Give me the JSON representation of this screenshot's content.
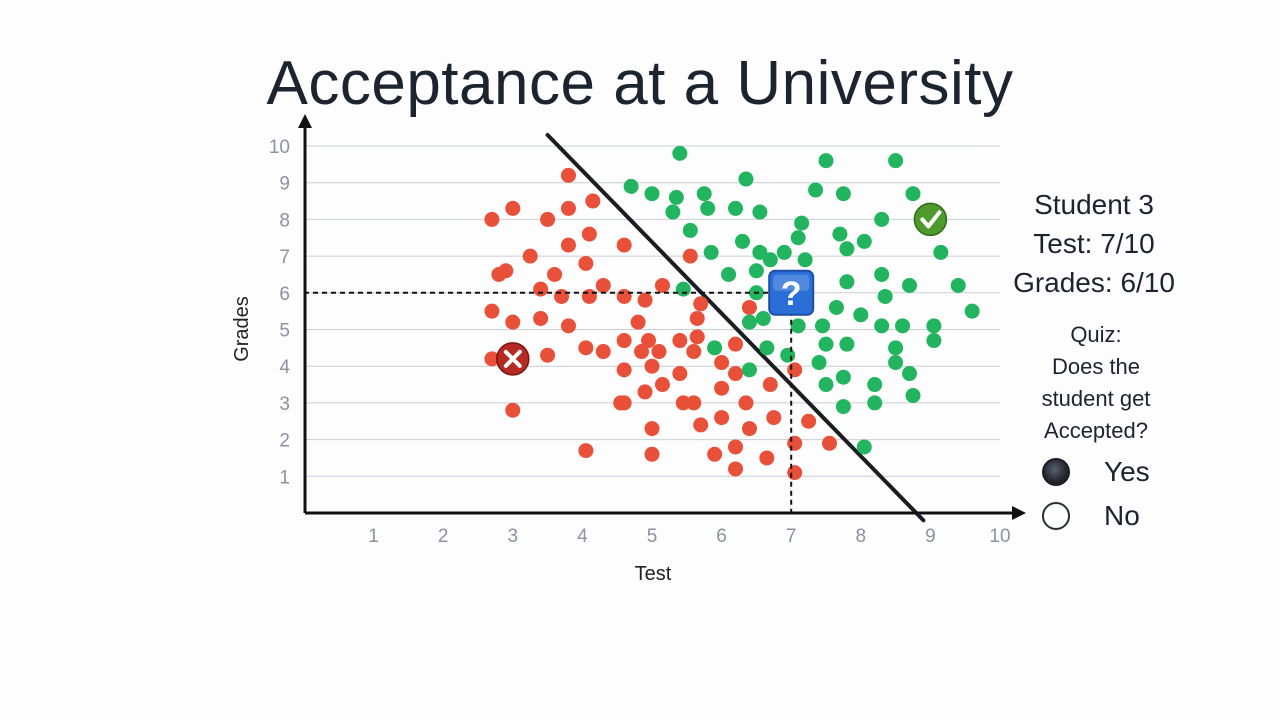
{
  "title": "Acceptance at a University",
  "student": {
    "name": "Student 3",
    "test_line": "Test: 7/10",
    "grades_line": "Grades: 6/10"
  },
  "quiz": {
    "lines": [
      "Quiz:",
      "Does the",
      "student get",
      "Accepted?"
    ],
    "options": [
      {
        "label": "Yes",
        "selected": true
      },
      {
        "label": "No",
        "selected": false
      }
    ]
  },
  "chart_data": {
    "type": "scatter",
    "xlabel": "Test",
    "ylabel": "Grades",
    "xlim": [
      0,
      10
    ],
    "ylim": [
      0,
      10
    ],
    "x_ticks": [
      1,
      2,
      3,
      4,
      5,
      6,
      7,
      8,
      9,
      10
    ],
    "y_ticks": [
      1,
      2,
      3,
      4,
      5,
      6,
      7,
      8,
      9,
      10
    ],
    "grid": "horizontal",
    "colors": {
      "rejected": "#e8503a",
      "accepted": "#22b45e"
    },
    "boundary": {
      "x1": 3.5,
      "y1": 10.3,
      "x2": 8.9,
      "y2": -0.2
    },
    "query_point": {
      "x": 7,
      "y": 6
    },
    "rejected_marker": {
      "x": 3,
      "y": 4.2
    },
    "accepted_marker": {
      "x": 9,
      "y": 8
    },
    "series": [
      {
        "status": "rejected",
        "points": [
          [
            2.7,
            8.0
          ],
          [
            3.0,
            8.3
          ],
          [
            3.5,
            8.0
          ],
          [
            3.8,
            9.2
          ],
          [
            3.8,
            8.3
          ],
          [
            4.15,
            8.5
          ],
          [
            3.8,
            7.3
          ],
          [
            4.1,
            7.6
          ],
          [
            4.6,
            7.3
          ],
          [
            2.8,
            6.5
          ],
          [
            2.9,
            6.6
          ],
          [
            3.25,
            7.0
          ],
          [
            3.6,
            6.5
          ],
          [
            4.05,
            6.8
          ],
          [
            3.4,
            6.1
          ],
          [
            3.7,
            5.9
          ],
          [
            4.1,
            5.9
          ],
          [
            4.3,
            6.2
          ],
          [
            2.7,
            5.5
          ],
          [
            3.0,
            5.2
          ],
          [
            3.4,
            5.3
          ],
          [
            3.8,
            5.1
          ],
          [
            2.7,
            4.2
          ],
          [
            3.5,
            4.3
          ],
          [
            4.05,
            4.5
          ],
          [
            4.3,
            4.4
          ],
          [
            3.0,
            2.8
          ],
          [
            4.05,
            1.7
          ],
          [
            4.6,
            5.9
          ],
          [
            4.9,
            5.8
          ],
          [
            5.15,
            6.2
          ],
          [
            4.8,
            5.2
          ],
          [
            4.6,
            4.7
          ],
          [
            4.95,
            4.7
          ],
          [
            4.85,
            4.4
          ],
          [
            5.1,
            4.4
          ],
          [
            4.6,
            3.9
          ],
          [
            5.0,
            4.0
          ],
          [
            4.55,
            3.0
          ],
          [
            4.6,
            3.0
          ],
          [
            4.9,
            3.3
          ],
          [
            5.15,
            3.5
          ],
          [
            5.4,
            3.8
          ],
          [
            5.4,
            4.7
          ],
          [
            5.6,
            4.4
          ],
          [
            5.65,
            4.8
          ],
          [
            5.65,
            5.3
          ],
          [
            5.7,
            5.7
          ],
          [
            5.55,
            7.0
          ],
          [
            5.6,
            3.0
          ],
          [
            5.45,
            3.0
          ],
          [
            5.7,
            2.4
          ],
          [
            6.0,
            3.4
          ],
          [
            6.0,
            4.1
          ],
          [
            6.2,
            3.8
          ],
          [
            6.2,
            4.6
          ],
          [
            6.4,
            5.6
          ],
          [
            6.35,
            3.0
          ],
          [
            6.4,
            2.3
          ],
          [
            6.7,
            3.5
          ],
          [
            6.75,
            2.6
          ],
          [
            6.0,
            2.6
          ],
          [
            5.9,
            1.6
          ],
          [
            6.2,
            1.8
          ],
          [
            6.2,
            1.2
          ],
          [
            6.65,
            1.5
          ],
          [
            7.05,
            3.9
          ],
          [
            7.25,
            2.5
          ],
          [
            7.05,
            1.9
          ],
          [
            7.05,
            1.1
          ],
          [
            7.55,
            1.9
          ],
          [
            5.0,
            2.3
          ],
          [
            5.0,
            1.6
          ]
        ]
      },
      {
        "status": "accepted",
        "points": [
          [
            5.4,
            9.8
          ],
          [
            4.7,
            8.9
          ],
          [
            5.0,
            8.7
          ],
          [
            5.35,
            8.6
          ],
          [
            5.3,
            8.2
          ],
          [
            5.75,
            8.7
          ],
          [
            5.8,
            8.3
          ],
          [
            6.2,
            8.3
          ],
          [
            6.35,
            9.1
          ],
          [
            6.55,
            8.2
          ],
          [
            5.55,
            7.7
          ],
          [
            5.85,
            7.1
          ],
          [
            6.3,
            7.4
          ],
          [
            6.55,
            7.1
          ],
          [
            6.5,
            6.6
          ],
          [
            6.7,
            6.9
          ],
          [
            6.9,
            7.1
          ],
          [
            7.1,
            7.5
          ],
          [
            7.15,
            7.9
          ],
          [
            7.35,
            8.8
          ],
          [
            7.5,
            9.6
          ],
          [
            7.75,
            8.7
          ],
          [
            7.7,
            7.6
          ],
          [
            7.8,
            7.2
          ],
          [
            8.05,
            7.4
          ],
          [
            8.3,
            8.0
          ],
          [
            8.5,
            9.6
          ],
          [
            8.75,
            8.7
          ],
          [
            9.15,
            7.1
          ],
          [
            9.4,
            6.2
          ],
          [
            9.6,
            5.5
          ],
          [
            7.2,
            6.9
          ],
          [
            6.1,
            6.5
          ],
          [
            6.5,
            6.0
          ],
          [
            5.45,
            6.1
          ],
          [
            6.4,
            5.2
          ],
          [
            6.6,
            5.3
          ],
          [
            7.1,
            5.1
          ],
          [
            7.45,
            5.1
          ],
          [
            7.65,
            5.6
          ],
          [
            7.8,
            6.3
          ],
          [
            8.3,
            6.5
          ],
          [
            8.35,
            5.9
          ],
          [
            8.7,
            6.2
          ],
          [
            8.0,
            5.4
          ],
          [
            8.3,
            5.1
          ],
          [
            8.6,
            5.1
          ],
          [
            9.05,
            5.1
          ],
          [
            9.05,
            4.7
          ],
          [
            8.5,
            4.5
          ],
          [
            7.5,
            4.6
          ],
          [
            7.8,
            4.6
          ],
          [
            6.65,
            4.5
          ],
          [
            5.9,
            4.5
          ],
          [
            6.4,
            3.9
          ],
          [
            6.95,
            4.3
          ],
          [
            7.4,
            4.1
          ],
          [
            8.5,
            4.1
          ],
          [
            7.75,
            3.7
          ],
          [
            8.7,
            3.8
          ],
          [
            7.5,
            3.5
          ],
          [
            8.2,
            3.5
          ],
          [
            8.2,
            3.0
          ],
          [
            7.75,
            2.9
          ],
          [
            8.75,
            3.2
          ],
          [
            8.05,
            1.8
          ]
        ]
      }
    ]
  }
}
